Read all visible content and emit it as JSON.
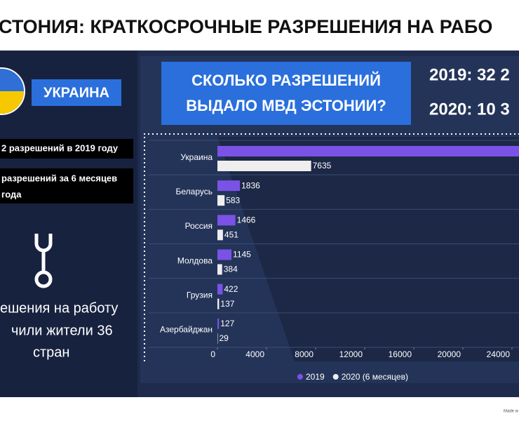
{
  "header": {
    "title": "СТОНИЯ: КРАТКОСРОЧНЫЕ РАЗРЕШЕНИЯ НА РАБО"
  },
  "sidebar": {
    "country": "УКРАИНА",
    "facts": [
      "2 разрешений в 2019 году",
      "разрешений за 6 месяцев",
      "года"
    ],
    "summary": [
      "ешения на работу",
      "чили жители 36",
      "стран"
    ]
  },
  "question": [
    "СКОЛЬКО РАЗРЕШЕНИЙ",
    "ВЫДАЛО МВД ЭСТОНИИ?"
  ],
  "totals": [
    "2019: 32 2",
    "2020: 10 3"
  ],
  "footer": "Made w",
  "chart_data": {
    "type": "bar",
    "orientation": "horizontal",
    "categories": [
      "Украина",
      "Беларусь",
      "Россия",
      "Молдова",
      "Грузия",
      "Азербайджан"
    ],
    "series": [
      {
        "name": "2019",
        "color": "#7b52e6",
        "values": [
          26000,
          1836,
          1466,
          1145,
          422,
          127
        ]
      },
      {
        "name": "2020 (6 месяцев)",
        "color": "#eeeeee",
        "values": [
          7635,
          583,
          451,
          384,
          137,
          29
        ]
      }
    ],
    "xlim": [
      0,
      28000
    ],
    "xticks": [
      0,
      4000,
      8000,
      12000,
      16000,
      20000,
      24000
    ],
    "grid": false,
    "legend": "bottom"
  }
}
